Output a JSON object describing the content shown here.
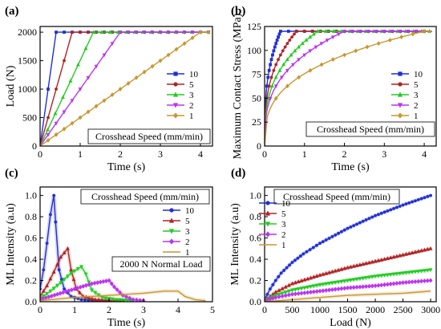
{
  "figure": {
    "colors": {
      "10": "#1f2fd6",
      "5": "#b22222",
      "3": "#22cc22",
      "2": "#bb33ee",
      "1": "#c8962e"
    }
  },
  "chart_data": [
    {
      "panel": "(a)",
      "type": "line",
      "xlabel": "Time (s)",
      "ylabel": "Load (N)",
      "xlim": [
        0,
        4.3
      ],
      "ylim": [
        0,
        2100
      ],
      "xticks": [
        0,
        1,
        2,
        3,
        4
      ],
      "yticks": [
        0,
        500,
        1000,
        1500,
        2000
      ],
      "xtick_labels": [
        "0",
        "1",
        "2",
        "3",
        "4"
      ],
      "ytick_labels": [
        "0",
        "500",
        "1000",
        "1500",
        "2000"
      ],
      "annotation": "Crosshead Speed (mm/min)",
      "legend_position": "right",
      "series": [
        {
          "name": "10",
          "marker": "square",
          "color": "#1f2fd6",
          "x": [
            0,
            0.4,
            4.2
          ],
          "y": [
            0,
            2000,
            2000
          ]
        },
        {
          "name": "5",
          "marker": "circle",
          "color": "#b22222",
          "x": [
            0,
            0.8,
            4.2
          ],
          "y": [
            0,
            2000,
            2000
          ]
        },
        {
          "name": "3",
          "marker": "triangle-up",
          "color": "#22cc22",
          "x": [
            0,
            1.33,
            4.2
          ],
          "y": [
            0,
            2000,
            2000
          ]
        },
        {
          "name": "2",
          "marker": "triangle-down",
          "color": "#bb33ee",
          "x": [
            0,
            2.0,
            4.2
          ],
          "y": [
            0,
            2000,
            2000
          ]
        },
        {
          "name": "1",
          "marker": "diamond",
          "color": "#c8962e",
          "x": [
            0,
            4.0,
            4.2
          ],
          "y": [
            0,
            2000,
            2000
          ]
        }
      ]
    },
    {
      "panel": "(b)",
      "type": "line",
      "xlabel": "Time (s)",
      "ylabel": "Maximum Contact Stress (MPa)",
      "xlim": [
        0,
        4.3
      ],
      "ylim": [
        0,
        125
      ],
      "xticks": [
        0,
        1,
        2,
        3,
        4
      ],
      "yticks": [
        0,
        25,
        50,
        75,
        100,
        125
      ],
      "xtick_labels": [
        "0",
        "1",
        "2",
        "3",
        "4"
      ],
      "ytick_labels": [
        "0",
        "25",
        "50",
        "75",
        "100",
        "125"
      ],
      "annotation": "Crosshead Speed (mm/min)",
      "legend_position": "right",
      "curve": "y = 120 * (t / t_end)^(1/3) until t_end, then 120",
      "series": [
        {
          "name": "10",
          "marker": "square",
          "color": "#1f2fd6",
          "t_end": 0.4,
          "x_max": 4.2,
          "plateau": 120
        },
        {
          "name": "5",
          "marker": "circle",
          "color": "#b22222",
          "t_end": 0.8,
          "x_max": 4.2,
          "plateau": 120
        },
        {
          "name": "3",
          "marker": "triangle-up",
          "color": "#22cc22",
          "t_end": 1.33,
          "x_max": 4.2,
          "plateau": 120
        },
        {
          "name": "2",
          "marker": "triangle-down",
          "color": "#bb33ee",
          "t_end": 2.0,
          "x_max": 4.2,
          "plateau": 120
        },
        {
          "name": "1",
          "marker": "diamond",
          "color": "#c8962e",
          "t_end": 4.0,
          "x_max": 4.2,
          "plateau": 120
        }
      ]
    },
    {
      "panel": "(c)",
      "type": "line",
      "xlabel": "Time (s)",
      "ylabel": "ML Intensity  (a.u)",
      "xlim": [
        0,
        5
      ],
      "ylim": [
        0,
        1.08
      ],
      "xticks": [
        0,
        1,
        2,
        3,
        4,
        5
      ],
      "yticks": [
        0,
        0.2,
        0.4,
        0.6,
        0.8,
        1.0
      ],
      "xtick_labels": [
        "0",
        "1",
        "2",
        "3",
        "4",
        "5"
      ],
      "ytick_labels": [
        "0.0",
        "0.2",
        "0.4",
        "0.6",
        "0.8",
        "1.0"
      ],
      "annotation": "Crosshead Speed (mm/min)",
      "annotation2": "2000 N Normal Load",
      "legend_position": "right",
      "series": [
        {
          "name": "10",
          "marker": "circle",
          "color": "#1f2fd6",
          "x": [
            0,
            0.1,
            0.2,
            0.3,
            0.4,
            0.45,
            0.55,
            0.7,
            0.9,
            1.2,
            1.6,
            2.0
          ],
          "y": [
            0.12,
            0.3,
            0.55,
            0.82,
            1.0,
            0.75,
            0.3,
            0.12,
            0.05,
            0.02,
            0.01,
            0.01
          ]
        },
        {
          "name": "5",
          "marker": "triangle-up",
          "color": "#b22222",
          "x": [
            0,
            0.2,
            0.4,
            0.6,
            0.8,
            0.9,
            1.05,
            1.25,
            1.6,
            2.0,
            2.4
          ],
          "y": [
            0.05,
            0.15,
            0.28,
            0.42,
            0.5,
            0.3,
            0.12,
            0.05,
            0.02,
            0.01,
            0.01
          ]
        },
        {
          "name": "3",
          "marker": "triangle-down",
          "color": "#22cc22",
          "x": [
            0,
            0.3,
            0.6,
            0.9,
            1.2,
            1.33,
            1.5,
            1.8,
            2.2,
            2.7
          ],
          "y": [
            0.03,
            0.1,
            0.18,
            0.27,
            0.33,
            0.26,
            0.11,
            0.04,
            0.02,
            0.01
          ]
        },
        {
          "name": "2",
          "marker": "diamond",
          "color": "#bb33ee",
          "x": [
            0,
            0.5,
            1.0,
            1.5,
            2.0,
            2.15,
            2.4,
            2.7,
            3.0
          ],
          "y": [
            0.02,
            0.07,
            0.12,
            0.17,
            0.2,
            0.14,
            0.06,
            0.02,
            0.01
          ]
        },
        {
          "name": "1",
          "marker": "none",
          "color": "#c8962e",
          "x": [
            0,
            1.0,
            2.0,
            3.0,
            3.6,
            4.0,
            4.2,
            4.5,
            4.8
          ],
          "y": [
            0.01,
            0.04,
            0.06,
            0.08,
            0.1,
            0.1,
            0.05,
            0.02,
            0.01
          ]
        }
      ]
    },
    {
      "panel": "(d)",
      "type": "line",
      "xlabel": "Load (N)",
      "ylabel": "ML Intensity  (a.u)",
      "xlim": [
        0,
        3100
      ],
      "ylim": [
        0,
        1.08
      ],
      "xticks": [
        0,
        500,
        1000,
        1500,
        2000,
        2500,
        3000
      ],
      "yticks": [
        0,
        0.2,
        0.4,
        0.6,
        0.8,
        1.0
      ],
      "xtick_labels": [
        "0",
        "500",
        "1000",
        "1500",
        "2000",
        "2500",
        "3000"
      ],
      "ytick_labels": [
        "0.0",
        "0.2",
        "0.4",
        "0.6",
        "0.8",
        "1.0"
      ],
      "annotation": "Crosshead Speed (mm/min)",
      "legend_position": "upper-left",
      "series": [
        {
          "name": "10",
          "marker": "circle",
          "color": "#1f2fd6",
          "x": [
            0,
            100,
            200,
            300,
            500,
            700,
            1000,
            1500,
            2000,
            2500,
            3000
          ],
          "y": [
            0.02,
            0.12,
            0.2,
            0.27,
            0.37,
            0.45,
            0.55,
            0.69,
            0.81,
            0.91,
            1.0
          ]
        },
        {
          "name": "5",
          "marker": "triangle-up",
          "color": "#b22222",
          "x": [
            0,
            200,
            500,
            1000,
            1500,
            2000,
            2500,
            3000
          ],
          "y": [
            0.01,
            0.09,
            0.17,
            0.25,
            0.32,
            0.38,
            0.44,
            0.5
          ]
        },
        {
          "name": "3",
          "marker": "triangle-down",
          "color": "#22cc22",
          "x": [
            0,
            200,
            500,
            1000,
            1500,
            2000,
            2500,
            3000
          ],
          "y": [
            0.01,
            0.06,
            0.11,
            0.16,
            0.2,
            0.24,
            0.27,
            0.3
          ]
        },
        {
          "name": "2",
          "marker": "diamond",
          "color": "#bb33ee",
          "x": [
            0,
            200,
            500,
            1000,
            1500,
            2000,
            2500,
            3000
          ],
          "y": [
            0.01,
            0.04,
            0.07,
            0.1,
            0.13,
            0.15,
            0.18,
            0.2
          ]
        },
        {
          "name": "1",
          "marker": "none",
          "color": "#c8962e",
          "x": [
            0,
            500,
            1000,
            1500,
            2000,
            2500,
            3000
          ],
          "y": [
            0.0,
            0.02,
            0.04,
            0.06,
            0.07,
            0.08,
            0.1
          ]
        }
      ]
    }
  ]
}
